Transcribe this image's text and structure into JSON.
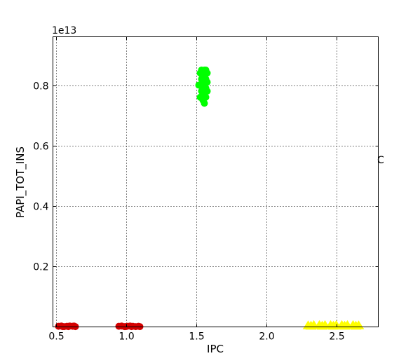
{
  "chart_data": {
    "type": "scatter",
    "xlabel": "IPC",
    "ylabel": "PAPI_TOT_INS",
    "y_offset_text": "1e13",
    "stray_text": "C",
    "xlim": [
      0.48,
      2.8
    ],
    "ylim": [
      0.0,
      0.96
    ],
    "y_scale_factor": 10000000000000.0,
    "xticks": [
      {
        "value": 0.5,
        "label": "0.5"
      },
      {
        "value": 1.0,
        "label": "1.0"
      },
      {
        "value": 1.5,
        "label": "1.5"
      },
      {
        "value": 2.0,
        "label": "2.0"
      },
      {
        "value": 2.5,
        "label": "2.5"
      }
    ],
    "yticks": [
      {
        "value": 0.2,
        "label": "0.2"
      },
      {
        "value": 0.4,
        "label": "0.4"
      },
      {
        "value": 0.6,
        "label": "0.6"
      },
      {
        "value": 0.8,
        "label": "0.8"
      }
    ],
    "grid": true,
    "series": [
      {
        "color": "#d40000",
        "marker": "circle",
        "points": [
          [
            0.52,
            0.002
          ],
          [
            0.54,
            0.003
          ],
          [
            0.56,
            0.001
          ],
          [
            0.58,
            0.002
          ],
          [
            0.6,
            0.003
          ],
          [
            0.62,
            0.002
          ],
          [
            0.64,
            0.001
          ],
          [
            0.55,
            0.001
          ],
          [
            0.59,
            0.001
          ],
          [
            0.63,
            0.003
          ],
          [
            0.95,
            0.002
          ],
          [
            0.97,
            0.003
          ],
          [
            0.99,
            0.001
          ],
          [
            1.01,
            0.002
          ],
          [
            1.03,
            0.003
          ],
          [
            1.05,
            0.002
          ],
          [
            1.07,
            0.001
          ],
          [
            1.09,
            0.002
          ],
          [
            1.1,
            0.001
          ],
          [
            1.0,
            0.001
          ],
          [
            1.04,
            0.001
          ]
        ]
      },
      {
        "color": "#00ff00",
        "marker": "circle",
        "points": [
          [
            1.53,
            0.84
          ],
          [
            1.54,
            0.82
          ],
          [
            1.53,
            0.8
          ],
          [
            1.54,
            0.78
          ],
          [
            1.53,
            0.76
          ],
          [
            1.55,
            0.83
          ],
          [
            1.56,
            0.81
          ],
          [
            1.55,
            0.79
          ],
          [
            1.56,
            0.77
          ],
          [
            1.55,
            0.75
          ],
          [
            1.57,
            0.85
          ],
          [
            1.57,
            0.82
          ],
          [
            1.57,
            0.79
          ],
          [
            1.57,
            0.76
          ],
          [
            1.56,
            0.74
          ],
          [
            1.52,
            0.8
          ],
          [
            1.58,
            0.84
          ],
          [
            1.58,
            0.81
          ],
          [
            1.58,
            0.78
          ],
          [
            1.54,
            0.85
          ],
          [
            1.56,
            0.85
          ]
        ]
      },
      {
        "color": "#ffff00",
        "marker": "triangle",
        "points": [
          [
            2.3,
            0.003
          ],
          [
            2.34,
            0.004
          ],
          [
            2.38,
            0.004
          ],
          [
            2.42,
            0.004
          ],
          [
            2.46,
            0.004
          ],
          [
            2.5,
            0.004
          ],
          [
            2.54,
            0.004
          ],
          [
            2.58,
            0.004
          ],
          [
            2.62,
            0.004
          ],
          [
            2.66,
            0.003
          ],
          [
            2.32,
            0.002
          ],
          [
            2.4,
            0.002
          ],
          [
            2.48,
            0.002
          ],
          [
            2.56,
            0.002
          ],
          [
            2.64,
            0.002
          ]
        ]
      }
    ]
  }
}
